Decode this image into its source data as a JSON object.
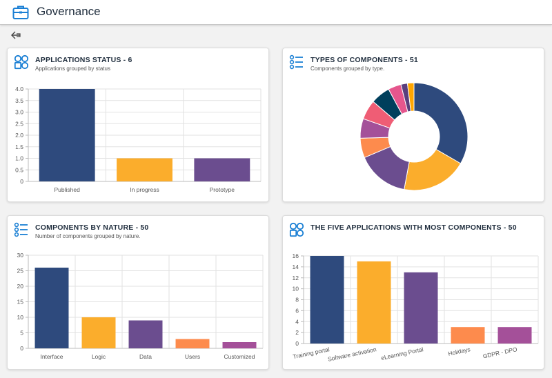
{
  "header": {
    "title": "Governance"
  },
  "cards": [
    {
      "title": "APPLICATIONS STATUS - 6",
      "subtitle": "Applications grouped by status",
      "chart_data": {
        "type": "bar",
        "categories": [
          "Published",
          "In progress",
          "Prototype"
        ],
        "values": [
          4,
          1,
          1
        ],
        "ylim": [
          0,
          4
        ],
        "yticks": [
          "0",
          "0.5",
          "1.0",
          "1.5",
          "2.0",
          "2.5",
          "3.0",
          "3.5",
          "4.0"
        ],
        "colors": [
          "#2e4a7d",
          "#fbad2c",
          "#6b4d8f"
        ],
        "grid": true
      }
    },
    {
      "title": "TYPES OF COMPONENTS - 51",
      "subtitle": "Components grouped by type.",
      "chart_data": {
        "type": "pie",
        "values": [
          17,
          10,
          8,
          3,
          3,
          3,
          3,
          2,
          1,
          1
        ],
        "colors": [
          "#2e4a7d",
          "#fbad2c",
          "#6b4d8f",
          "#fd8b4d",
          "#a45099",
          "#ef5d75",
          "#003f5c",
          "#e5568d",
          "#5a3f7d",
          "#ffa600"
        ]
      }
    },
    {
      "title": "COMPONENTS BY NATURE - 50",
      "subtitle": "Number of components grouped by nature.",
      "chart_data": {
        "type": "bar",
        "categories": [
          "Interface",
          "Logic",
          "Data",
          "Users",
          "Customized"
        ],
        "values": [
          26,
          10,
          9,
          3,
          2
        ],
        "ylim": [
          0,
          30
        ],
        "yticks": [
          "0",
          "5",
          "10",
          "15",
          "20",
          "25",
          "30"
        ],
        "colors": [
          "#2e4a7d",
          "#fbad2c",
          "#6b4d8f",
          "#fd8b4d",
          "#a45099"
        ],
        "grid": true
      }
    },
    {
      "title": "THE FIVE APPLICATIONS WITH MOST COMPONENTS - 50",
      "subtitle": "",
      "chart_data": {
        "type": "bar",
        "categories": [
          "Training portal",
          "Software activation",
          "eLearning Portal",
          "Holidays",
          "GDPR - DPO"
        ],
        "values": [
          16,
          15,
          13,
          3,
          3
        ],
        "ylim": [
          0,
          16
        ],
        "yticks": [
          "0",
          "2",
          "4",
          "6",
          "8",
          "10",
          "12",
          "14",
          "16"
        ],
        "colors": [
          "#2e4a7d",
          "#fbad2c",
          "#6b4d8f",
          "#fd8b4d",
          "#a45099"
        ],
        "grid": true
      }
    }
  ]
}
